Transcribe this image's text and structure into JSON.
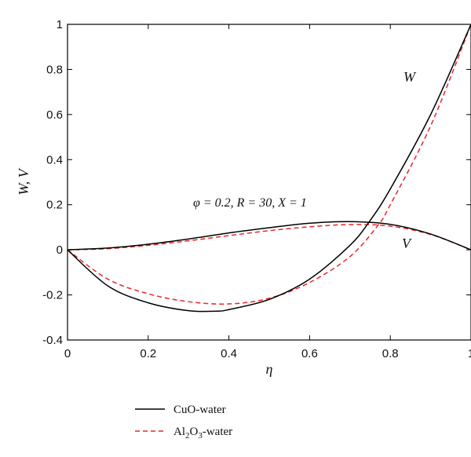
{
  "chart_data": {
    "type": "line",
    "title": "",
    "xlabel": "η",
    "ylabel": "W, V",
    "xlim": [
      0,
      1
    ],
    "ylim": [
      -0.4,
      1
    ],
    "x_ticks": [
      "0",
      "0.2",
      "0.4",
      "0.6",
      "0.8",
      "1"
    ],
    "y_ticks": [
      "-0.4",
      "-0.2",
      "0",
      "0.2",
      "0.4",
      "0.6",
      "0.8",
      "1"
    ],
    "annotation": "φ = 0.2, R = 30, X = 1",
    "curve_labels": {
      "W": "W",
      "V": "V"
    },
    "legend": {
      "position": "below",
      "entries": [
        {
          "label": "CuO-water",
          "style": "solid",
          "color": "#000000"
        },
        {
          "label_main": "Al",
          "sub1": "2",
          "mid": "O",
          "sub2": "3",
          "suffix": "-water",
          "style": "dashed",
          "color": "#e8262a"
        }
      ]
    },
    "series": [
      {
        "name": "CuO-water",
        "curve": "W",
        "style": "solid",
        "color": "#000000",
        "x": [
          0,
          0.1,
          0.2,
          0.3,
          0.37,
          0.4,
          0.5,
          0.6,
          0.7,
          0.75,
          0.8,
          0.9,
          1.0
        ],
        "y": [
          0,
          -0.16,
          -0.235,
          -0.27,
          -0.272,
          -0.265,
          -0.22,
          -0.13,
          0.02,
          0.13,
          0.27,
          0.6,
          1.0
        ]
      },
      {
        "name": "CuO-water",
        "curve": "V",
        "style": "solid",
        "color": "#000000",
        "x": [
          0,
          0.1,
          0.2,
          0.3,
          0.4,
          0.5,
          0.6,
          0.7,
          0.8,
          0.9,
          1.0
        ],
        "y": [
          0,
          0.008,
          0.025,
          0.048,
          0.075,
          0.098,
          0.118,
          0.125,
          0.113,
          0.07,
          0
        ]
      },
      {
        "name": "Al2O3-water",
        "curve": "W",
        "style": "dashed",
        "color": "#e8262a",
        "x": [
          0,
          0.1,
          0.2,
          0.3,
          0.4,
          0.5,
          0.6,
          0.7,
          0.77,
          0.8,
          0.9,
          1.0
        ],
        "y": [
          0,
          -0.13,
          -0.195,
          -0.23,
          -0.24,
          -0.215,
          -0.145,
          -0.03,
          0.11,
          0.2,
          0.55,
          1.0
        ]
      },
      {
        "name": "Al2O3-water",
        "curve": "V",
        "style": "dashed",
        "color": "#e8262a",
        "x": [
          0,
          0.1,
          0.2,
          0.3,
          0.4,
          0.5,
          0.6,
          0.7,
          0.8,
          0.9,
          1.0
        ],
        "y": [
          0,
          0.005,
          0.02,
          0.04,
          0.063,
          0.085,
          0.102,
          0.112,
          0.105,
          0.068,
          0
        ]
      }
    ]
  }
}
